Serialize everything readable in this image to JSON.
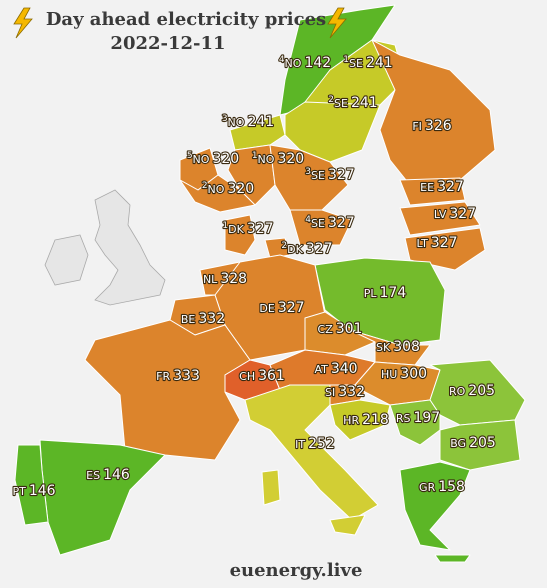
{
  "title": "Day ahead electricity prices",
  "date": "2022-12-11",
  "footer": "euenergy.live",
  "regions": [
    {
      "zone": "4",
      "code": "NO",
      "price": 142,
      "color": "#5cb626"
    },
    {
      "zone": "1",
      "code": "SE",
      "price": 241,
      "color": "#c6ca28"
    },
    {
      "zone": "2",
      "code": "SE",
      "price": 241,
      "color": "#c6ca28"
    },
    {
      "zone": "3",
      "code": "NO",
      "price": 241,
      "color": "#c6ca28"
    },
    {
      "code": "FI",
      "price": 326,
      "color": "#dc842c"
    },
    {
      "zone": "5",
      "code": "NO",
      "price": 320,
      "color": "#dc842c"
    },
    {
      "zone": "1",
      "code": "NO",
      "price": 320,
      "color": "#dc842c"
    },
    {
      "zone": "2",
      "code": "NO",
      "price": 320,
      "color": "#dc842c"
    },
    {
      "zone": "3",
      "code": "SE",
      "price": 327,
      "color": "#dc842c"
    },
    {
      "code": "EE",
      "price": 327,
      "color": "#dc842c"
    },
    {
      "code": "LV",
      "price": 327,
      "color": "#dc842c"
    },
    {
      "code": "LT",
      "price": 327,
      "color": "#dc842c"
    },
    {
      "zone": "1",
      "code": "DK",
      "price": 327,
      "color": "#dc842c"
    },
    {
      "zone": "4",
      "code": "SE",
      "price": 327,
      "color": "#dc842c"
    },
    {
      "zone": "2",
      "code": "DK",
      "price": 327,
      "color": "#dc842c"
    },
    {
      "code": "NL",
      "price": 328,
      "color": "#dc842c"
    },
    {
      "code": "PL",
      "price": 174,
      "color": "#74bb2c"
    },
    {
      "code": "DE",
      "price": 327,
      "color": "#dc842c"
    },
    {
      "code": "BE",
      "price": 332,
      "color": "#dc842c"
    },
    {
      "code": "CZ",
      "price": 301,
      "color": "#dc8c2c"
    },
    {
      "code": "SK",
      "price": 308,
      "color": "#dc882c"
    },
    {
      "code": "FR",
      "price": 333,
      "color": "#dc842c"
    },
    {
      "code": "CH",
      "price": 361,
      "color": "#e0602a"
    },
    {
      "code": "AT",
      "price": 340,
      "color": "#de7a2b"
    },
    {
      "code": "HU",
      "price": 300,
      "color": "#dc8c2c"
    },
    {
      "code": "RO",
      "price": 205,
      "color": "#8cc43a"
    },
    {
      "code": "SI",
      "price": 332,
      "color": "#dc842c"
    },
    {
      "code": "HR",
      "price": 218,
      "color": "#c6ca28"
    },
    {
      "code": "RS",
      "price": 197,
      "color": "#8cc43a"
    },
    {
      "code": "BG",
      "price": 205,
      "color": "#8cc43a"
    },
    {
      "code": "IT",
      "price": 252,
      "color": "#d2ce34"
    },
    {
      "code": "ES",
      "price": 146,
      "color": "#5cb626"
    },
    {
      "code": "PT",
      "price": 146,
      "color": "#5cb626"
    },
    {
      "code": "GR",
      "price": 158,
      "color": "#5cb626"
    }
  ]
}
